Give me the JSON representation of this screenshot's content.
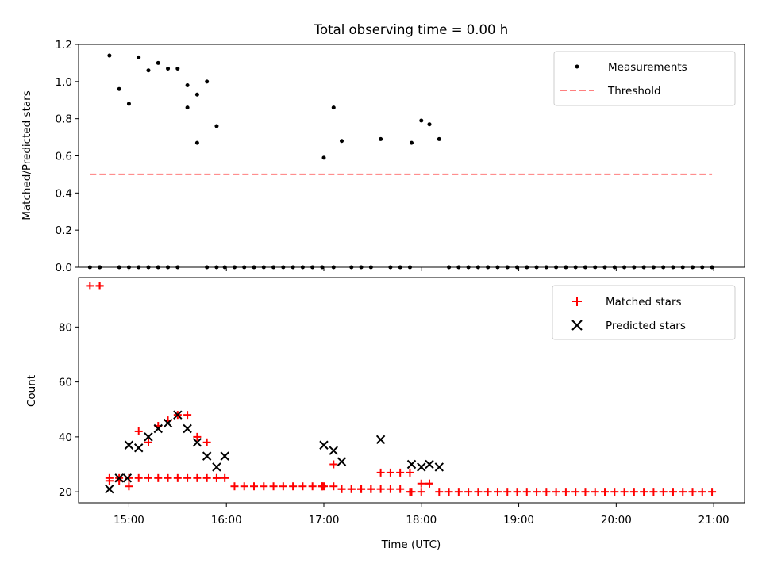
{
  "title": "Total observing time = 0.00 h",
  "colors": {
    "measurement": "#000000",
    "threshold": "#ff7f7f",
    "matched": "#ff0000",
    "predicted": "#000000"
  },
  "chart_data": [
    {
      "type": "scatter",
      "ylabel": "Matched/Predicted stars",
      "ylim": [
        0,
        1.2
      ],
      "xlim": [
        "14:29",
        "21:19"
      ],
      "yticks": [
        "0.0",
        "0.2",
        "0.4",
        "0.6",
        "0.8",
        "1.0",
        "1.2"
      ],
      "legend": {
        "placement": "top-right",
        "entries": [
          "Measurements",
          "Threshold"
        ]
      },
      "series": [
        {
          "name": "Measurements",
          "x": [
            "14:36",
            "14:42",
            "14:48",
            "14:54",
            "15:00",
            "15:06",
            "15:12",
            "15:18",
            "15:24",
            "15:30",
            "15:36",
            "15:42",
            "15:48",
            "15:54",
            "15:59",
            "16:05",
            "16:11",
            "16:17",
            "16:23",
            "16:29",
            "16:35",
            "16:41",
            "16:47",
            "16:53",
            "16:59",
            "17:00",
            "17:06",
            "17:11",
            "17:17",
            "17:23",
            "17:29",
            "17:35",
            "17:41",
            "17:47",
            "17:53",
            "17:54",
            "18:00",
            "18:05",
            "18:11",
            "18:17",
            "18:23",
            "18:29",
            "18:35",
            "18:41",
            "18:47",
            "18:53",
            "18:59",
            "19:05",
            "19:11",
            "19:17",
            "19:23",
            "19:29",
            "19:35",
            "19:41",
            "19:47",
            "19:53",
            "19:59",
            "20:05",
            "20:11",
            "20:17",
            "20:23",
            "20:29",
            "20:35",
            "20:41",
            "20:47",
            "20:53",
            "20:59",
            "14:42",
            "14:54",
            "15:00",
            "15:06",
            "15:12",
            "15:18",
            "15:24",
            "15:30",
            "15:36",
            "15:42",
            "15:48",
            "15:54",
            "17:06"
          ],
          "values": [
            0.0,
            0.0,
            1.14,
            0.96,
            0.88,
            1.13,
            1.06,
            1.1,
            1.07,
            1.07,
            0.98,
            0.93,
            1.0,
            0.76,
            0.0,
            0.0,
            0.0,
            0.0,
            0.0,
            0.0,
            0.0,
            0.0,
            0.0,
            0.0,
            0.0,
            0.59,
            0.86,
            0.68,
            0.0,
            0.0,
            0.0,
            0.69,
            0.0,
            0.0,
            0.0,
            0.67,
            0.79,
            0.77,
            0.69,
            0.0,
            0.0,
            0.0,
            0.0,
            0.0,
            0.0,
            0.0,
            0.0,
            0.0,
            0.0,
            0.0,
            0.0,
            0.0,
            0.0,
            0.0,
            0.0,
            0.0,
            0.0,
            0.0,
            0.0,
            0.0,
            0.0,
            0.0,
            0.0,
            0.0,
            0.0,
            0.0,
            0.0,
            0.0,
            0.0,
            0.0,
            0.0,
            0.0,
            0.0,
            0.0,
            0.0,
            0.86,
            0.67,
            0.0,
            0.0,
            0.0
          ]
        },
        {
          "name": "Threshold",
          "x": [
            "14:36",
            "20:59"
          ],
          "values": [
            0.5,
            0.5
          ]
        }
      ]
    },
    {
      "type": "scatter",
      "xlabel": "Time (UTC)",
      "ylabel": "Count",
      "ylim": [
        16,
        98
      ],
      "xlim": [
        "14:29",
        "21:19"
      ],
      "xticks": [
        "15:00",
        "16:00",
        "17:00",
        "18:00",
        "19:00",
        "20:00",
        "21:00"
      ],
      "yticks": [
        "20",
        "40",
        "60",
        "80"
      ],
      "legend": {
        "placement": "top-right",
        "entries": [
          "Matched stars",
          "Predicted stars"
        ]
      },
      "series": [
        {
          "name": "Matched stars",
          "x": [
            "14:36",
            "14:42",
            "14:48",
            "14:54",
            "15:00",
            "15:06",
            "15:12",
            "15:18",
            "15:24",
            "15:30",
            "15:36",
            "15:42",
            "15:48",
            "15:54",
            "15:59",
            "16:05",
            "16:11",
            "16:17",
            "16:23",
            "16:29",
            "16:35",
            "16:41",
            "16:47",
            "16:53",
            "16:59",
            "17:00",
            "17:06",
            "17:11",
            "17:17",
            "17:23",
            "17:29",
            "17:35",
            "17:41",
            "17:47",
            "17:53",
            "17:54",
            "18:00",
            "18:05",
            "18:11",
            "18:17",
            "18:23",
            "18:29",
            "18:35",
            "18:41",
            "18:47",
            "18:53",
            "18:59",
            "19:05",
            "19:11",
            "19:17",
            "19:23",
            "19:29",
            "19:35",
            "19:41",
            "19:47",
            "19:53",
            "19:59",
            "20:05",
            "20:11",
            "20:17",
            "20:23",
            "20:29",
            "20:35",
            "20:41",
            "20:47",
            "20:53",
            "20:59",
            "14:42",
            "14:48",
            "14:54",
            "15:00",
            "15:06",
            "15:12",
            "15:18",
            "15:24",
            "15:30",
            "15:36",
            "15:42",
            "15:48",
            "15:54",
            "16:59",
            "17:06",
            "17:11",
            "17:17",
            "17:23",
            "17:29",
            "17:35",
            "17:41",
            "17:47",
            "17:53",
            "18:00",
            "18:05"
          ],
          "values": [
            95,
            95,
            24,
            24,
            22,
            42,
            38,
            44,
            46,
            48,
            48,
            40,
            38,
            25,
            25,
            22,
            22,
            22,
            22,
            22,
            22,
            22,
            22,
            22,
            22,
            22,
            30,
            21,
            21,
            21,
            21,
            27,
            27,
            27,
            27,
            20,
            23,
            23,
            20,
            20,
            20,
            20,
            20,
            20,
            20,
            20,
            20,
            20,
            20,
            20,
            20,
            20,
            20,
            20,
            20,
            20,
            20,
            20,
            20,
            20,
            20,
            20,
            20,
            20,
            20,
            20,
            20,
            95,
            25,
            25,
            25,
            25,
            25,
            25,
            25,
            25,
            25,
            25,
            25,
            25,
            22,
            22,
            21,
            21,
            21,
            21,
            21,
            21,
            21,
            20,
            20,
            23
          ]
        },
        {
          "name": "Predicted stars",
          "x": [
            "14:48",
            "14:54",
            "14:59",
            "15:00",
            "15:06",
            "15:12",
            "15:18",
            "15:24",
            "15:30",
            "15:36",
            "15:42",
            "15:48",
            "15:54",
            "15:59",
            "17:00",
            "17:06",
            "17:11",
            "17:35",
            "17:54",
            "18:00",
            "18:05",
            "18:11"
          ],
          "values": [
            21,
            25,
            25,
            37,
            36,
            40,
            43,
            45,
            48,
            43,
            38,
            33,
            29,
            33,
            37,
            35,
            31,
            39,
            30,
            29,
            30,
            29
          ]
        }
      ]
    }
  ]
}
